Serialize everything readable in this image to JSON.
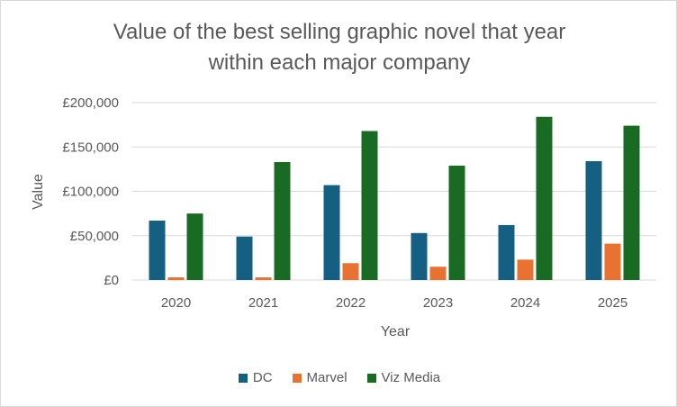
{
  "chart_data": {
    "type": "bar",
    "title_lines": [
      "Value of the best selling graphic novel that year",
      "within each major company"
    ],
    "xlabel": "Year",
    "ylabel": "Value",
    "categories": [
      "2020",
      "2021",
      "2022",
      "2023",
      "2024",
      "2025"
    ],
    "ylim": [
      0,
      200000
    ],
    "yticks": [
      0,
      50000,
      100000,
      150000,
      200000
    ],
    "ytick_labels": [
      "£0",
      "£50,000",
      "£100,000",
      "£150,000",
      "£200,000"
    ],
    "grid": true,
    "legend_position": "bottom",
    "series": [
      {
        "name": "DC",
        "color": "#156082",
        "values": [
          67000,
          49000,
          107000,
          53000,
          62000,
          134000
        ]
      },
      {
        "name": "Marvel",
        "color": "#E97132",
        "values": [
          3000,
          3000,
          19000,
          15000,
          23000,
          41000
        ]
      },
      {
        "name": "Viz Media",
        "color": "#196B24",
        "values": [
          75000,
          133000,
          168000,
          129000,
          184000,
          174000
        ]
      }
    ]
  }
}
